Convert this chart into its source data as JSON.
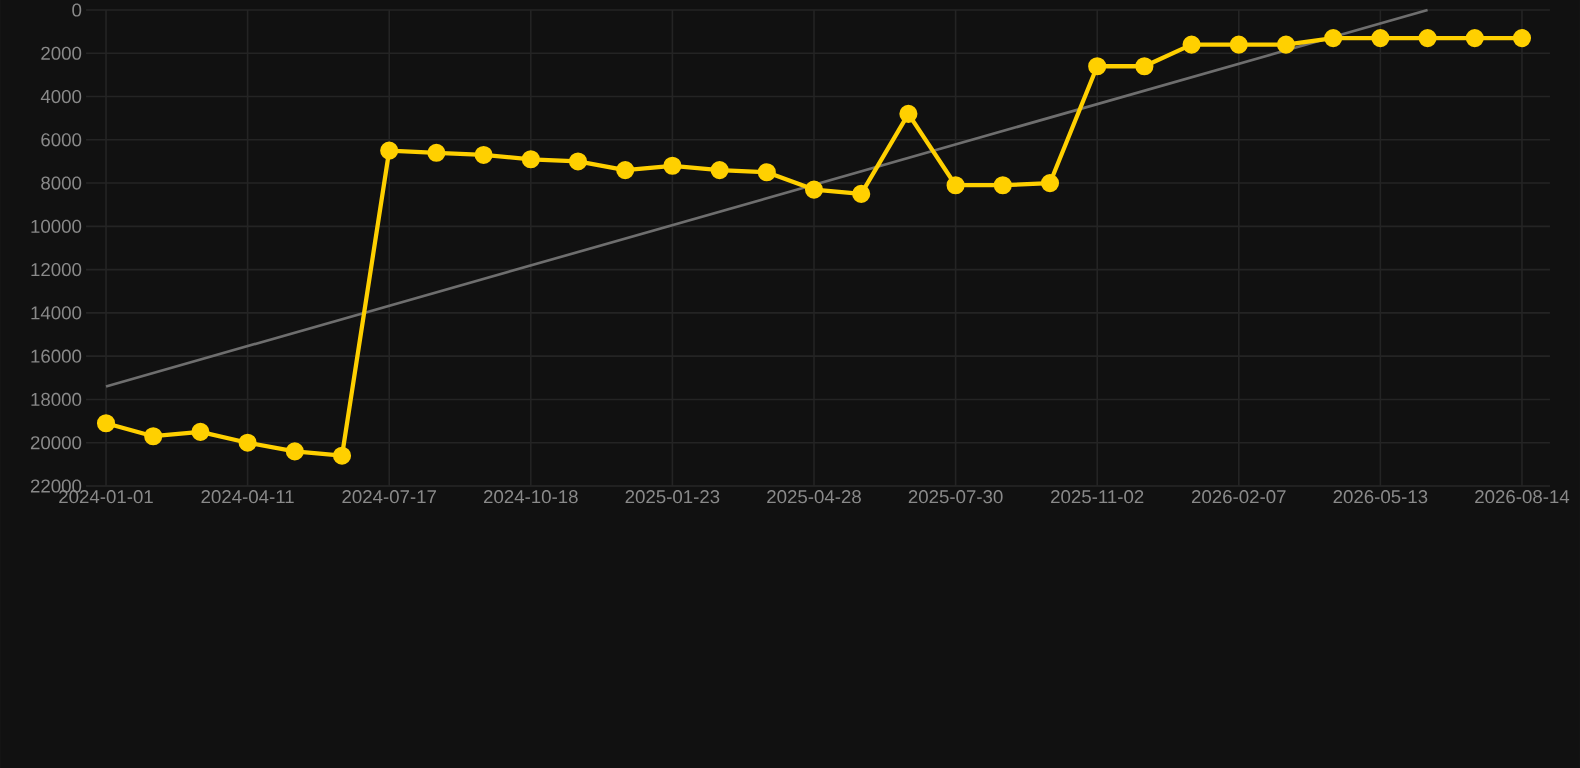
{
  "chart_data": {
    "type": "line",
    "categories": [
      "2024-01-01",
      null,
      null,
      "2024-04-11",
      null,
      null,
      "2024-07-17",
      null,
      null,
      "2024-10-18",
      null,
      null,
      "2025-01-23",
      null,
      null,
      "2025-04-28",
      null,
      null,
      "2025-07-30",
      null,
      null,
      "2025-11-02",
      null,
      null,
      "2026-02-07",
      null,
      null,
      "2026-05-13",
      null,
      null,
      "2026-08-14"
    ],
    "series": [
      {
        "color": "#ffd000",
        "marker": "circle",
        "values": [
          19100,
          19700,
          19500,
          20000,
          20400,
          20600,
          6500,
          6600,
          6700,
          6900,
          7000,
          7400,
          7200,
          7400,
          7500,
          8300,
          8500,
          4800,
          8100,
          8100,
          8000,
          2600,
          2600,
          1600,
          1600,
          1600,
          1300,
          1300,
          1300,
          1300,
          1300
        ]
      },
      {
        "color": "#6e6e6e",
        "marker": "none",
        "values": [
          17400,
          null,
          null,
          null,
          null,
          null,
          null,
          null,
          null,
          null,
          null,
          null,
          null,
          null,
          null,
          null,
          null,
          null,
          null,
          null,
          null,
          null,
          null,
          null,
          null,
          null,
          null,
          null,
          0,
          null,
          null
        ]
      }
    ],
    "ylim": [
      22000,
      0
    ],
    "yticks": [
      0,
      2000,
      4000,
      6000,
      8000,
      10000,
      12000,
      14000,
      16000,
      18000,
      20000,
      22000
    ],
    "grid": true
  }
}
